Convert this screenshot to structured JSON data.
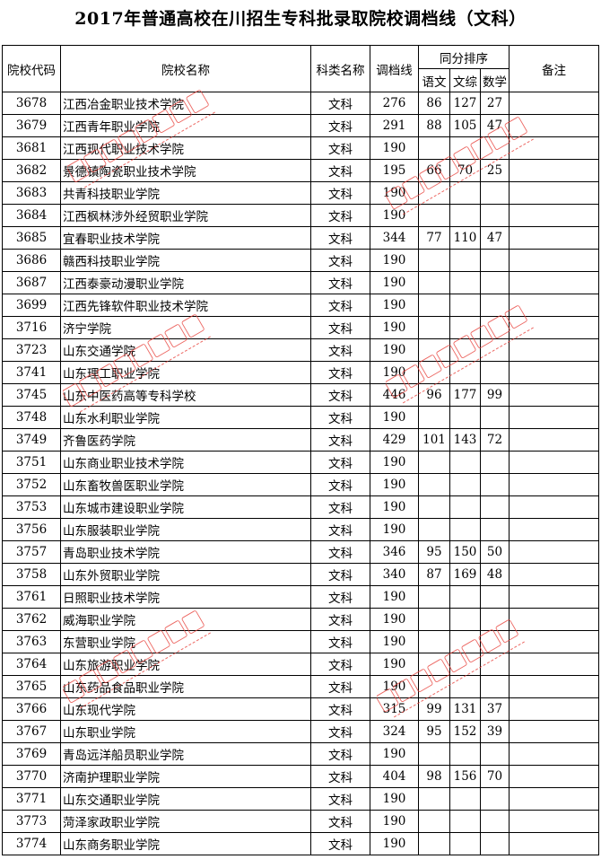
{
  "title": "2017年普通高校在川招生专科批录取院校调档线（文科）",
  "headers": {
    "code": "院校代码",
    "name": "院校名称",
    "type": "科类名称",
    "line": "调档线",
    "tie_order": "同分排序",
    "chinese": "语文",
    "wenzong": "文综",
    "math": "数学",
    "note": "备注"
  },
  "rows": [
    [
      "3678",
      "江西冶金职业技术学院",
      "文科",
      "276",
      "86",
      "127",
      "27",
      ""
    ],
    [
      "3679",
      "江西青年职业学院",
      "文科",
      "291",
      "88",
      "105",
      "47",
      ""
    ],
    [
      "3681",
      "江西现代职业技术学院",
      "文科",
      "190",
      "",
      "",
      "",
      ""
    ],
    [
      "3682",
      "景德镇陶瓷职业技术学院",
      "文科",
      "195",
      "66",
      "70",
      "25",
      ""
    ],
    [
      "3683",
      "共青科技职业学院",
      "文科",
      "190",
      "",
      "",
      "",
      ""
    ],
    [
      "3684",
      "江西枫林涉外经贸职业学院",
      "文科",
      "190",
      "",
      "",
      "",
      ""
    ],
    [
      "3685",
      "宜春职业技术学院",
      "文科",
      "344",
      "77",
      "110",
      "47",
      ""
    ],
    [
      "3686",
      "赣西科技职业学院",
      "文科",
      "190",
      "",
      "",
      "",
      ""
    ],
    [
      "3687",
      "江西泰豪动漫职业学院",
      "文科",
      "190",
      "",
      "",
      "",
      ""
    ],
    [
      "3699",
      "江西先锋软件职业技术学院",
      "文科",
      "190",
      "",
      "",
      "",
      ""
    ],
    [
      "3716",
      "济宁学院",
      "文科",
      "190",
      "",
      "",
      "",
      ""
    ],
    [
      "3723",
      "山东交通学院",
      "文科",
      "190",
      "",
      "",
      "",
      ""
    ],
    [
      "3741",
      "山东理工职业学院",
      "文科",
      "190",
      "",
      "",
      "",
      ""
    ],
    [
      "3745",
      "山东中医药高等专科学校",
      "文科",
      "446",
      "96",
      "177",
      "99",
      ""
    ],
    [
      "3748",
      "山东水利职业学院",
      "文科",
      "190",
      "",
      "",
      "",
      ""
    ],
    [
      "3749",
      "齐鲁医药学院",
      "文科",
      "429",
      "101",
      "143",
      "72",
      ""
    ],
    [
      "3751",
      "山东商业职业技术学院",
      "文科",
      "190",
      "",
      "",
      "",
      ""
    ],
    [
      "3752",
      "山东畜牧兽医职业学院",
      "文科",
      "190",
      "",
      "",
      "",
      ""
    ],
    [
      "3753",
      "山东城市建设职业学院",
      "文科",
      "190",
      "",
      "",
      "",
      ""
    ],
    [
      "3756",
      "山东服装职业学院",
      "文科",
      "190",
      "",
      "",
      "",
      ""
    ],
    [
      "3757",
      "青岛职业技术学院",
      "文科",
      "346",
      "95",
      "150",
      "50",
      ""
    ],
    [
      "3758",
      "山东外贸职业学院",
      "文科",
      "340",
      "87",
      "169",
      "48",
      ""
    ],
    [
      "3761",
      "日照职业技术学院",
      "文科",
      "190",
      "",
      "",
      "",
      ""
    ],
    [
      "3762",
      "威海职业学院",
      "文科",
      "190",
      "",
      "",
      "",
      ""
    ],
    [
      "3763",
      "东营职业学院",
      "文科",
      "190",
      "",
      "",
      "",
      ""
    ],
    [
      "3764",
      "山东旅游职业学院",
      "文科",
      "190",
      "",
      "",
      "",
      ""
    ],
    [
      "3765",
      "山东药品食品职业学院",
      "文科",
      "190",
      "",
      "",
      "",
      ""
    ],
    [
      "3766",
      "山东现代学院",
      "文科",
      "315",
      "99",
      "131",
      "37",
      ""
    ],
    [
      "3767",
      "山东职业学院",
      "文科",
      "324",
      "95",
      "152",
      "39",
      ""
    ],
    [
      "3769",
      "青岛远洋船员职业学院",
      "文科",
      "190",
      "",
      "",
      "",
      ""
    ],
    [
      "3770",
      "济南护理职业学院",
      "文科",
      "404",
      "98",
      "156",
      "70",
      ""
    ],
    [
      "3771",
      "山东交通职业学院",
      "文科",
      "190",
      "",
      "",
      "",
      ""
    ],
    [
      "3773",
      "菏泽家政职业学院",
      "文科",
      "190",
      "",
      "",
      "",
      ""
    ],
    [
      "3774",
      "山东商务职业学院",
      "文科",
      "190",
      "",
      "",
      "",
      ""
    ]
  ],
  "watermark": {
    "cn": "四川省教育考试院",
    "en": "SICHUAN EDUCATIONAL EXAMINATION AUTHORITY",
    "color": "#e8403a"
  }
}
